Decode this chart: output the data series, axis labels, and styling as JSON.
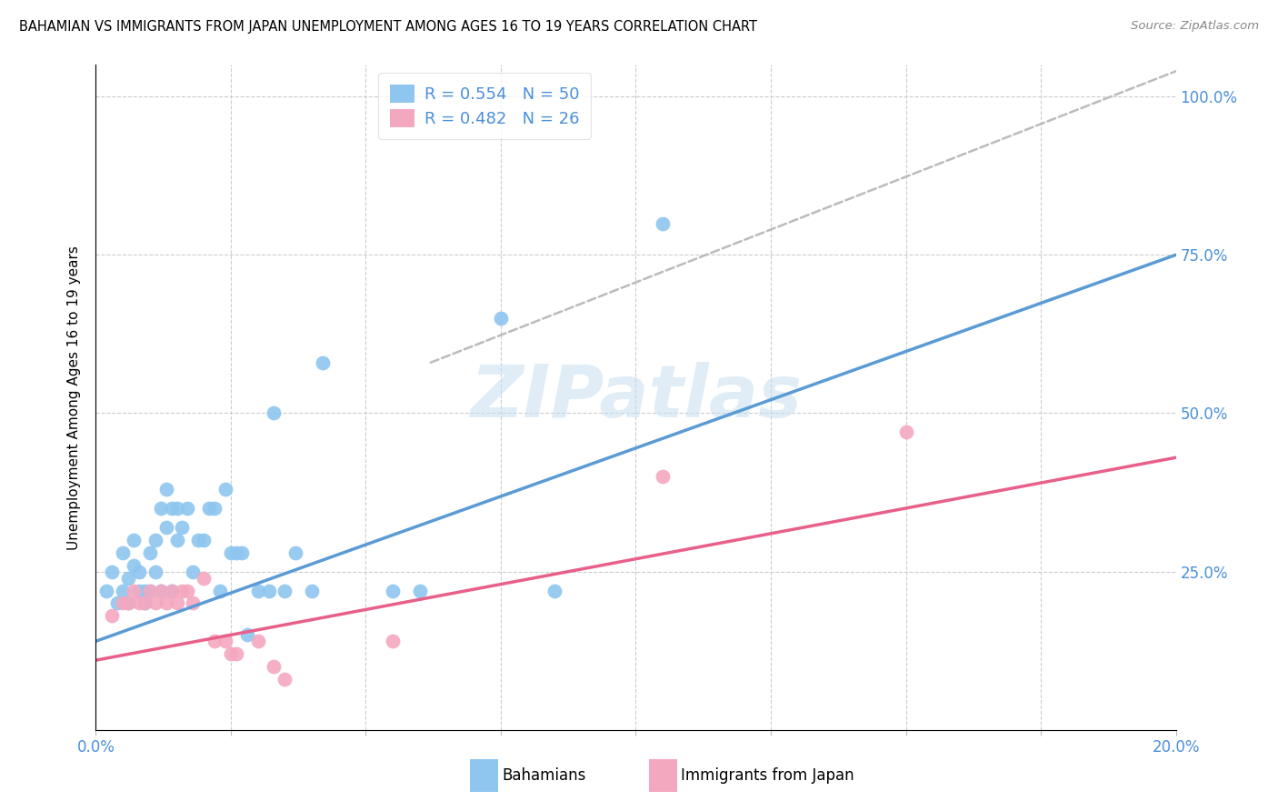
{
  "title": "BAHAMIAN VS IMMIGRANTS FROM JAPAN UNEMPLOYMENT AMONG AGES 16 TO 19 YEARS CORRELATION CHART",
  "source": "Source: ZipAtlas.com",
  "ylabel": "Unemployment Among Ages 16 to 19 years",
  "xlim": [
    0.0,
    0.2
  ],
  "ylim": [
    0.0,
    1.05
  ],
  "blue_color": "#8EC6F0",
  "pink_color": "#F4A8C0",
  "trend_blue": "#5B9BD5",
  "trend_pink": "#E8608A",
  "trend_gray": "#BBBBBB",
  "watermark": "ZIPatlas",
  "blue_scatter_x": [
    0.002,
    0.003,
    0.004,
    0.005,
    0.005,
    0.006,
    0.006,
    0.007,
    0.007,
    0.008,
    0.008,
    0.009,
    0.009,
    0.01,
    0.01,
    0.011,
    0.011,
    0.012,
    0.012,
    0.013,
    0.013,
    0.014,
    0.014,
    0.015,
    0.015,
    0.016,
    0.017,
    0.018,
    0.019,
    0.02,
    0.021,
    0.022,
    0.023,
    0.024,
    0.025,
    0.026,
    0.027,
    0.028,
    0.03,
    0.032,
    0.033,
    0.035,
    0.037,
    0.04,
    0.042,
    0.055,
    0.06,
    0.075,
    0.085,
    0.105
  ],
  "blue_scatter_y": [
    0.22,
    0.25,
    0.2,
    0.22,
    0.28,
    0.2,
    0.24,
    0.26,
    0.3,
    0.22,
    0.25,
    0.2,
    0.22,
    0.22,
    0.28,
    0.25,
    0.3,
    0.22,
    0.35,
    0.32,
    0.38,
    0.22,
    0.35,
    0.3,
    0.35,
    0.32,
    0.35,
    0.25,
    0.3,
    0.3,
    0.35,
    0.35,
    0.22,
    0.38,
    0.28,
    0.28,
    0.28,
    0.15,
    0.22,
    0.22,
    0.5,
    0.22,
    0.28,
    0.22,
    0.58,
    0.22,
    0.22,
    0.65,
    0.22,
    0.8
  ],
  "pink_scatter_x": [
    0.003,
    0.005,
    0.006,
    0.007,
    0.008,
    0.009,
    0.01,
    0.011,
    0.012,
    0.013,
    0.014,
    0.015,
    0.016,
    0.017,
    0.018,
    0.02,
    0.022,
    0.024,
    0.025,
    0.026,
    0.03,
    0.033,
    0.035,
    0.055,
    0.105,
    0.15
  ],
  "pink_scatter_y": [
    0.18,
    0.2,
    0.2,
    0.22,
    0.2,
    0.2,
    0.22,
    0.2,
    0.22,
    0.2,
    0.22,
    0.2,
    0.22,
    0.22,
    0.2,
    0.24,
    0.14,
    0.14,
    0.12,
    0.12,
    0.14,
    0.1,
    0.08,
    0.14,
    0.4,
    0.47
  ],
  "blue_trend": [
    0.0,
    0.2,
    0.14,
    0.75
  ],
  "pink_trend": [
    0.0,
    0.2,
    0.11,
    0.43
  ],
  "gray_dash": [
    0.062,
    0.2,
    0.58,
    1.04
  ]
}
